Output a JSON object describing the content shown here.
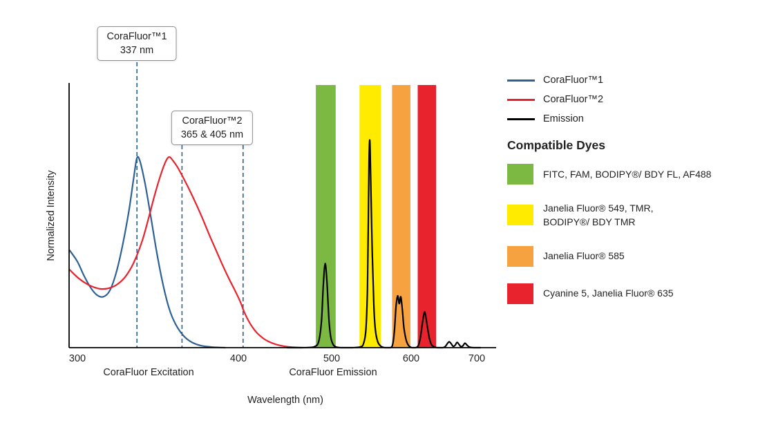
{
  "chart_data": {
    "type": "line",
    "title": "",
    "xlabel": "Wavelength (nm)",
    "ylabel": "Normalized Intensity",
    "x_ticks": [
      300,
      400,
      500,
      600,
      700
    ],
    "ylim": [
      0,
      1.15
    ],
    "grid": false,
    "axis_sections": [
      {
        "label": "CoraFluor Excitation"
      },
      {
        "label": "CoraFluor Emission"
      }
    ],
    "dashed_line_color": "#2D6095",
    "callouts": [
      {
        "title": "CoraFluor™1",
        "value": "337 nm",
        "wavelengths_nm": [
          337
        ]
      },
      {
        "title": "CoraFluor™2",
        "value": "365 & 405 nm",
        "wavelengths_nm": [
          365,
          405
        ]
      }
    ],
    "series": [
      {
        "name": "CoraFluor™1",
        "color": "#2D6095",
        "points": [
          [
            295,
            0.5
          ],
          [
            300,
            0.44
          ],
          [
            304,
            0.37
          ],
          [
            308,
            0.31
          ],
          [
            312,
            0.27
          ],
          [
            316,
            0.26
          ],
          [
            320,
            0.29
          ],
          [
            324,
            0.38
          ],
          [
            328,
            0.52
          ],
          [
            332,
            0.7
          ],
          [
            335,
            0.87
          ],
          [
            337,
            0.97
          ],
          [
            339,
            0.95
          ],
          [
            342,
            0.84
          ],
          [
            345,
            0.7
          ],
          [
            349,
            0.5
          ],
          [
            353,
            0.33
          ],
          [
            357,
            0.2
          ],
          [
            361,
            0.12
          ],
          [
            366,
            0.06
          ],
          [
            371,
            0.028
          ],
          [
            377,
            0.01
          ],
          [
            384,
            0.003
          ],
          [
            392,
            0
          ]
        ]
      },
      {
        "name": "CoraFluor™2",
        "color": "#E8232E",
        "points": [
          [
            295,
            0.4
          ],
          [
            300,
            0.36
          ],
          [
            305,
            0.33
          ],
          [
            310,
            0.31
          ],
          [
            315,
            0.3
          ],
          [
            320,
            0.305
          ],
          [
            325,
            0.325
          ],
          [
            330,
            0.365
          ],
          [
            335,
            0.435
          ],
          [
            340,
            0.54
          ],
          [
            344,
            0.655
          ],
          [
            348,
            0.78
          ],
          [
            352,
            0.89
          ],
          [
            355,
            0.955
          ],
          [
            357,
            0.975
          ],
          [
            359,
            0.96
          ],
          [
            362,
            0.925
          ],
          [
            366,
            0.865
          ],
          [
            370,
            0.8
          ],
          [
            374,
            0.73
          ],
          [
            378,
            0.655
          ],
          [
            382,
            0.575
          ],
          [
            386,
            0.5
          ],
          [
            390,
            0.425
          ],
          [
            394,
            0.355
          ],
          [
            398,
            0.29
          ],
          [
            402,
            0.235
          ],
          [
            406,
            0.185
          ],
          [
            410,
            0.145
          ],
          [
            415,
            0.105
          ],
          [
            420,
            0.075
          ],
          [
            426,
            0.05
          ],
          [
            432,
            0.032
          ],
          [
            440,
            0.017
          ],
          [
            448,
            0.008
          ],
          [
            458,
            0.002
          ],
          [
            468,
            0
          ]
        ]
      },
      {
        "name": "Emission",
        "color": "#000000",
        "points": [
          [
            452,
            0
          ],
          [
            466,
            0
          ],
          [
            476,
            0.001
          ],
          [
            482,
            0.006
          ],
          [
            486,
            0.03
          ],
          [
            489,
            0.13
          ],
          [
            491,
            0.32
          ],
          [
            493,
            0.43
          ],
          [
            495,
            0.33
          ],
          [
            497,
            0.15
          ],
          [
            499,
            0.055
          ],
          [
            502,
            0.015
          ],
          [
            506,
            0.003
          ],
          [
            512,
            0
          ],
          [
            526,
            0
          ],
          [
            536,
            0.004
          ],
          [
            540,
            0.02
          ],
          [
            543,
            0.09
          ],
          [
            545,
            0.3
          ],
          [
            546,
            0.6
          ],
          [
            547,
            0.95
          ],
          [
            548,
            1.06
          ],
          [
            549,
            0.88
          ],
          [
            551,
            0.5
          ],
          [
            553,
            0.22
          ],
          [
            555,
            0.09
          ],
          [
            558,
            0.03
          ],
          [
            562,
            0.007
          ],
          [
            567,
            0
          ],
          [
            574,
            0
          ],
          [
            577,
            0.02
          ],
          [
            579,
            0.09
          ],
          [
            581,
            0.21
          ],
          [
            583,
            0.265
          ],
          [
            585,
            0.225
          ],
          [
            587,
            0.26
          ],
          [
            589,
            0.19
          ],
          [
            591,
            0.1
          ],
          [
            594,
            0.035
          ],
          [
            597,
            0.01
          ],
          [
            601,
            0
          ],
          [
            607,
            0
          ],
          [
            611,
            0.012
          ],
          [
            614,
            0.05
          ],
          [
            617,
            0.12
          ],
          [
            620,
            0.18
          ],
          [
            622,
            0.165
          ],
          [
            625,
            0.1
          ],
          [
            628,
            0.045
          ],
          [
            631,
            0.015
          ],
          [
            635,
            0.004
          ],
          [
            640,
            0
          ],
          [
            648,
            0
          ],
          [
            652,
            0.006
          ],
          [
            655,
            0.02
          ],
          [
            658,
            0.03
          ],
          [
            661,
            0.02
          ],
          [
            664,
            0.007
          ],
          [
            667,
            0.012
          ],
          [
            670,
            0.027
          ],
          [
            673,
            0.016
          ],
          [
            676,
            0.005
          ],
          [
            679,
            0.01
          ],
          [
            682,
            0.023
          ],
          [
            685,
            0.013
          ],
          [
            689,
            0.003
          ],
          [
            695,
            0
          ],
          [
            706,
            0
          ]
        ]
      }
    ],
    "bands": [
      {
        "name": "FITC, FAM, BODIPY®/ BDY FL, AF488",
        "color": "#7CB942",
        "range_nm": [
          483,
          505
        ]
      },
      {
        "name": "Janelia Fluor® 549, TMR, BODIPY®/ BDY TMR",
        "color": "#FFEB00",
        "range_nm": [
          535,
          562
        ]
      },
      {
        "name": "Janelia Fluor® 585",
        "color": "#F6A241",
        "range_nm": [
          576,
          599
        ]
      },
      {
        "name": "Cyanine 5, Janelia Fluor® 635",
        "color": "#E8232E",
        "range_nm": [
          610,
          638
        ]
      }
    ]
  },
  "legend": {
    "series": [
      {
        "label": "CoraFluor™1",
        "color": "#2D6095"
      },
      {
        "label": "CoraFluor™2",
        "color": "#E8232E"
      },
      {
        "label": "Emission",
        "color": "#000000"
      }
    ],
    "dyes_heading": "Compatible Dyes",
    "dyes": [
      {
        "label": "FITC, FAM, BODIPY®/ BDY FL, AF488",
        "color": "#7CB942"
      },
      {
        "label": "Janelia Fluor® 549, TMR,\nBODIPY®/ BDY TMR",
        "color": "#FFEB00"
      },
      {
        "label": "Janelia Fluor® 585",
        "color": "#F6A241"
      },
      {
        "label": "Cyanine 5, Janelia Fluor® 635",
        "color": "#E8232E"
      }
    ]
  },
  "axis": {
    "ylabel": "Normalized Intensity",
    "xlabel": "Wavelength (nm)",
    "excitation_section_label": "CoraFluor Excitation",
    "emission_section_label": "CoraFluor Emission"
  }
}
